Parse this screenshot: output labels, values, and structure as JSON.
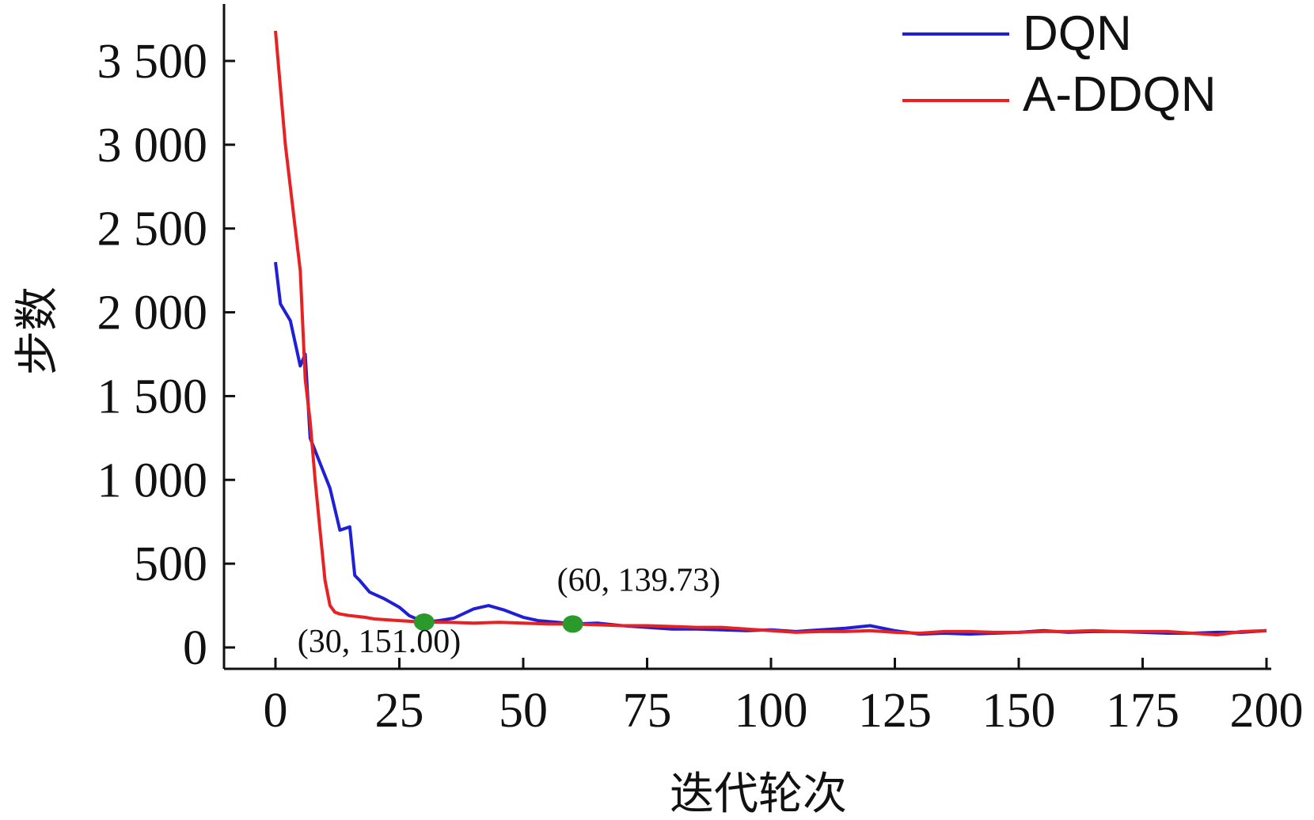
{
  "chart_data": {
    "type": "line",
    "xlabel": "迭代轮次",
    "ylabel": "步数",
    "xlim": [
      0,
      200
    ],
    "ylim": [
      0,
      3700
    ],
    "xticks": [
      0,
      25,
      50,
      75,
      100,
      125,
      150,
      175,
      200
    ],
    "xtick_labels": [
      "0",
      "25",
      "50",
      "75",
      "100",
      "125",
      "150",
      "175",
      "200"
    ],
    "yticks": [
      0,
      500,
      1000,
      1500,
      2000,
      2500,
      3000,
      3500
    ],
    "ytick_labels": [
      "0",
      "500",
      "1 000",
      "1 500",
      "2 000",
      "2 500",
      "3 000",
      "3 500"
    ],
    "grid": false,
    "legend": "top-right",
    "series": [
      {
        "name": "DQN",
        "color": "#1f1fd6",
        "x": [
          0,
          1,
          3,
          5,
          6,
          7,
          9,
          11,
          13,
          15,
          16,
          17,
          19,
          22,
          25,
          27,
          30,
          33,
          36,
          40,
          43,
          46,
          50,
          53,
          57,
          60,
          65,
          70,
          75,
          80,
          85,
          90,
          95,
          100,
          105,
          110,
          115,
          120,
          125,
          130,
          135,
          140,
          145,
          150,
          155,
          160,
          165,
          170,
          175,
          180,
          185,
          190,
          195,
          200
        ],
        "y": [
          2300,
          2050,
          1950,
          1680,
          1750,
          1250,
          1100,
          950,
          700,
          720,
          430,
          400,
          330,
          290,
          240,
          190,
          151,
          160,
          175,
          230,
          250,
          225,
          180,
          160,
          150,
          140,
          145,
          130,
          120,
          110,
          110,
          105,
          100,
          105,
          95,
          105,
          115,
          130,
          100,
          80,
          85,
          80,
          85,
          90,
          100,
          90,
          95,
          95,
          90,
          85,
          85,
          90,
          90,
          100
        ]
      },
      {
        "name": "A-DDQN",
        "color": "#e82222",
        "x": [
          0,
          2,
          4,
          5,
          6,
          7,
          8,
          9,
          10,
          11,
          12,
          13,
          15,
          18,
          20,
          25,
          30,
          35,
          40,
          45,
          50,
          55,
          60,
          65,
          70,
          75,
          80,
          85,
          90,
          95,
          100,
          105,
          110,
          115,
          120,
          125,
          130,
          135,
          140,
          145,
          150,
          155,
          160,
          165,
          170,
          175,
          180,
          185,
          190,
          195,
          200
        ],
        "y": [
          3680,
          3000,
          2500,
          2250,
          1600,
          1350,
          1000,
          700,
          400,
          250,
          210,
          200,
          190,
          180,
          170,
          160,
          151,
          150,
          145,
          150,
          145,
          140,
          139.73,
          135,
          130,
          130,
          125,
          120,
          120,
          110,
          100,
          90,
          95,
          95,
          100,
          90,
          85,
          95,
          95,
          90,
          90,
          95,
          95,
          100,
          95,
          95,
          95,
          85,
          75,
          95,
          100
        ]
      }
    ],
    "markers": [
      {
        "x": 30,
        "y": 151.0,
        "color": "#2a9a2a"
      },
      {
        "x": 60,
        "y": 139.73,
        "color": "#2a9a2a"
      }
    ],
    "annotations": [
      {
        "text": "(30, 151.00)",
        "x": 30,
        "y": 151.0
      },
      {
        "text": "(60, 139.73)",
        "x": 60,
        "y": 139.73
      }
    ]
  }
}
